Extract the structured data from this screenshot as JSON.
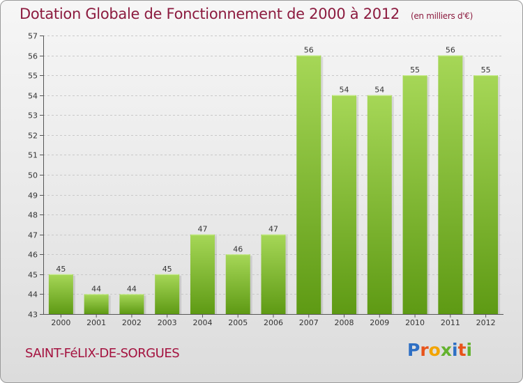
{
  "header": {
    "title": "Dotation Globale de Fonctionnement de 2000 à 2012",
    "unit": "(en milliers d'€)"
  },
  "footer": {
    "commune": "SAINT-FéLIX-DE-SORGUES",
    "logo": "Proxiti"
  },
  "colors": {
    "bar_top": "#a6d757",
    "bar_bottom": "#5e9a14",
    "title": "#8c1b3f",
    "commune": "#a4123f"
  },
  "chart_data": {
    "type": "bar",
    "title": "Dotation Globale de Fonctionnement de 2000 à 2012",
    "subtitle": "(en milliers d'€)",
    "categories": [
      "2000",
      "2001",
      "2002",
      "2003",
      "2004",
      "2005",
      "2006",
      "2007",
      "2008",
      "2009",
      "2010",
      "2011",
      "2012"
    ],
    "values": [
      45,
      44,
      44,
      45,
      47,
      46,
      47,
      56,
      54,
      54,
      55,
      56,
      55
    ],
    "xlabel": "",
    "ylabel": "",
    "ylim": [
      43,
      57
    ],
    "yticks": [
      43,
      44,
      45,
      46,
      47,
      48,
      49,
      50,
      51,
      52,
      53,
      54,
      55,
      56,
      57
    ],
    "grid": true,
    "legend": "none",
    "data_labels": true
  }
}
